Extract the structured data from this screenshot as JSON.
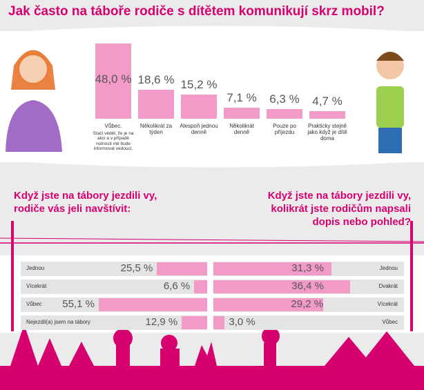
{
  "chart_data": [
    {
      "type": "bar",
      "title": "Jak často na táboře rodiče s dítětem komunikují skrz mobil?",
      "categories": [
        "Vůbec.",
        "Několikrát za týden",
        "Alespoň jednou denně",
        "Několikrát denně",
        "Pouze po příjezdu",
        "Prakticky stejně jako když je dítě doma"
      ],
      "annotations": [
        "Stačí vědět, že je na akci a v případě nutnosti mě bude informovat vedoucí."
      ],
      "values": [
        48.0,
        18.6,
        15.2,
        7.1,
        6.3,
        4.7
      ],
      "value_labels": [
        "48,0 %",
        "18,6 %",
        "15,2 %",
        "7,1 %",
        "6,3 %",
        "4,7 %"
      ],
      "color": "#f29ac8"
    },
    {
      "type": "hbar",
      "direction": "left",
      "title": "Když jste na tábory jezdili vy, rodiče vás jeli navštívit:",
      "categories": [
        "Jednou",
        "Vícekrát",
        "Vůbec",
        "Nejezdil(a) jsem na tábory"
      ],
      "values": [
        25.5,
        6.6,
        55.1,
        12.9
      ],
      "value_labels": [
        "25,5 %",
        "6,6 %",
        "55,1 %",
        "12,9 %"
      ],
      "color": "#f29ac8"
    },
    {
      "type": "hbar",
      "direction": "right",
      "title": "Když jste na tábory jezdili vy, kolikrát jste rodičům napsali dopis nebo pohled?",
      "categories": [
        "Jednou",
        "Dvakrát",
        "Vícekrát",
        "Vůbec"
      ],
      "values": [
        31.3,
        36.4,
        29.2,
        3.0
      ],
      "value_labels": [
        "31,3 %",
        "36,4 %",
        "29,2 %",
        "3,0 %"
      ],
      "color": "#f29ac8"
    }
  ]
}
